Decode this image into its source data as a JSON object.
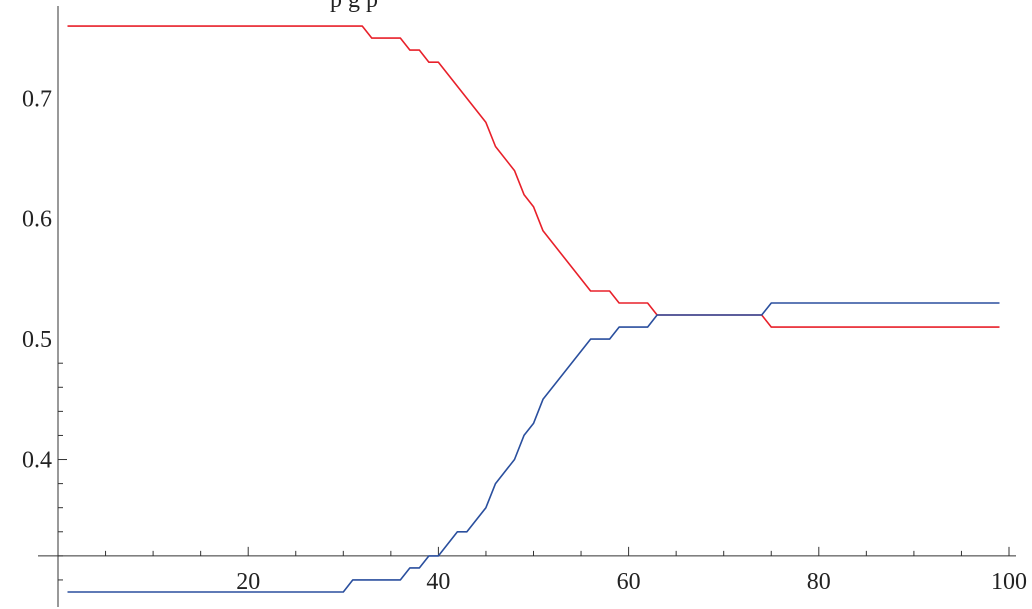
{
  "chart_data": {
    "type": "line",
    "title_fragment": "p     g     p",
    "xlabel": "",
    "ylabel": "",
    "xlim": [
      0,
      100
    ],
    "ylim": [
      0.285,
      0.775
    ],
    "x_ticks": [
      20,
      40,
      60,
      80,
      100
    ],
    "x_tick_labels": [
      "20",
      "40",
      "60",
      "80",
      "100"
    ],
    "y_ticks": [
      0.4,
      0.5,
      0.6,
      0.7
    ],
    "y_tick_labels": [
      "0.4",
      "0.5",
      "0.6",
      "0.7"
    ],
    "axis_crossing": {
      "x": 0,
      "y": 0.32
    },
    "grid": false,
    "colors": {
      "series_upper": "#e8202a",
      "series_lower": "#2a4f9e"
    },
    "series": [
      {
        "x": [
          1,
          32,
          33,
          36,
          37,
          38,
          39,
          40,
          45,
          46,
          48,
          49,
          50,
          51,
          56,
          58,
          59,
          62,
          63,
          74,
          75,
          99
        ],
        "y": [
          0.76,
          0.76,
          0.75,
          0.75,
          0.74,
          0.74,
          0.73,
          0.73,
          0.68,
          0.66,
          0.64,
          0.62,
          0.61,
          0.59,
          0.54,
          0.54,
          0.53,
          0.53,
          0.52,
          0.52,
          0.51,
          0.51
        ]
      },
      {
        "x": [
          1,
          30,
          31,
          36,
          37,
          38,
          39,
          40,
          42,
          43,
          45,
          46,
          48,
          49,
          50,
          51,
          56,
          58,
          59,
          62,
          63,
          74,
          75,
          99
        ],
        "y": [
          0.29,
          0.29,
          0.3,
          0.3,
          0.31,
          0.31,
          0.32,
          0.32,
          0.34,
          0.34,
          0.36,
          0.38,
          0.4,
          0.42,
          0.43,
          0.45,
          0.5,
          0.5,
          0.51,
          0.51,
          0.52,
          0.52,
          0.53,
          0.53
        ]
      }
    ]
  }
}
